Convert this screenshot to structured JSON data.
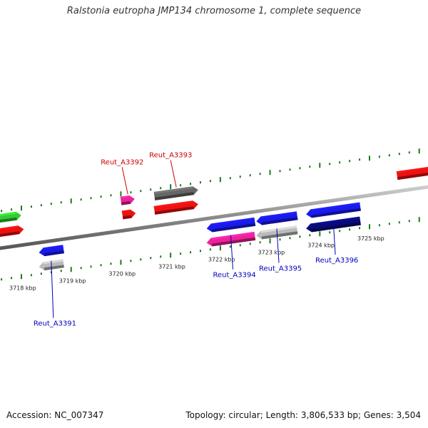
{
  "title": "Ralstonia eutropha JMP134 chromosome 1, complete sequence",
  "footer": {
    "accession": "Accession: NC_007347",
    "summary": "Topology: circular; Length: 3,806,533 bp; Genes: 3,504"
  },
  "colors": {
    "backbone": "#8a8a8a",
    "tick": "#1e7a1e",
    "label_red": "#cc0000",
    "label_blue": "#0000bb",
    "gene_red": "#ee1111",
    "gene_green": "#33cc33",
    "gene_pink": "#ee2299",
    "gene_blue": "#1a1aee",
    "gene_gray": "#bbbbbb",
    "gene_darkgray": "#666666",
    "gene_navy": "#0a0a7a"
  },
  "scale": {
    "unit": "kbp",
    "tick_labels": [
      "3718 kbp",
      "3719 kbp",
      "3720 kbp",
      "3721 kbp",
      "3722 kbp",
      "3723 kbp",
      "3724 kbp",
      "3725 kbp"
    ]
  },
  "genes": [
    {
      "id": "g-green",
      "strand": "forward",
      "row": 2,
      "start_kbp": 3717.55,
      "end_kbp": 3718.0,
      "color": "gene_green",
      "label": ""
    },
    {
      "id": "g-red-left",
      "strand": "forward",
      "row": 1,
      "start_kbp": 3717.55,
      "end_kbp": 3718.05,
      "color": "gene_red",
      "label": ""
    },
    {
      "id": "g-a3392-pink",
      "strand": "forward",
      "row": 2,
      "start_kbp": 3720.0,
      "end_kbp": 3720.28,
      "color": "gene_pink",
      "label": "Reut_A3392"
    },
    {
      "id": "g-a3392-red",
      "strand": "forward",
      "row": 1,
      "start_kbp": 3720.03,
      "end_kbp": 3720.3,
      "color": "gene_red",
      "label": ""
    },
    {
      "id": "g-a3393-gray",
      "strand": "forward",
      "row": 2,
      "start_kbp": 3720.67,
      "end_kbp": 3721.56,
      "color": "gene_darkgray",
      "label": "Reut_A3393"
    },
    {
      "id": "g-a3393-red",
      "strand": "forward",
      "row": 1,
      "start_kbp": 3720.67,
      "end_kbp": 3721.56,
      "color": "gene_red",
      "label": ""
    },
    {
      "id": "g-red-right",
      "strand": "forward",
      "row": 1,
      "start_kbp": 3725.55,
      "end_kbp": 3726.3,
      "color": "gene_red",
      "label": ""
    },
    {
      "id": "g-a3391-blue",
      "strand": "reverse",
      "row": 1,
      "start_kbp": 3718.35,
      "end_kbp": 3718.85,
      "color": "gene_blue",
      "label": "Reut_A3391"
    },
    {
      "id": "g-a3391-gray",
      "strand": "reverse",
      "row": 2,
      "start_kbp": 3718.35,
      "end_kbp": 3718.85,
      "color": "gene_gray",
      "label": ""
    },
    {
      "id": "g-a3394-blue",
      "strand": "reverse",
      "row": 1,
      "start_kbp": 3721.72,
      "end_kbp": 3722.7,
      "color": "gene_blue",
      "label": "Reut_A3394"
    },
    {
      "id": "g-a3394-pink",
      "strand": "reverse",
      "row": 2,
      "start_kbp": 3721.72,
      "end_kbp": 3722.7,
      "color": "gene_pink",
      "label": ""
    },
    {
      "id": "g-a3395-blue",
      "strand": "reverse",
      "row": 1,
      "start_kbp": 3722.72,
      "end_kbp": 3723.55,
      "color": "gene_blue",
      "label": "Reut_A3395"
    },
    {
      "id": "g-a3395-gray",
      "strand": "reverse",
      "row": 2,
      "start_kbp": 3722.72,
      "end_kbp": 3723.55,
      "color": "gene_gray",
      "label": ""
    },
    {
      "id": "g-a3396-blue",
      "strand": "reverse",
      "row": 1,
      "start_kbp": 3723.72,
      "end_kbp": 3724.82,
      "color": "gene_blue",
      "label": "Reut_A3396"
    },
    {
      "id": "g-a3396-navy",
      "strand": "reverse",
      "row": 2,
      "start_kbp": 3723.72,
      "end_kbp": 3724.82,
      "color": "gene_navy",
      "label": ""
    }
  ]
}
